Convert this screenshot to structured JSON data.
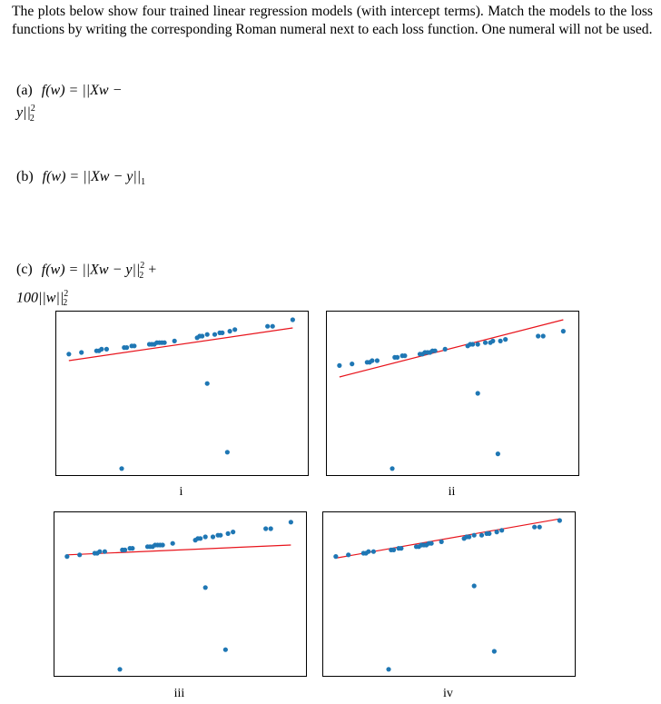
{
  "intro": "The plots below show four trained linear regression models (with intercept terms). Match the models to the loss functions by writing the corresponding Roman numeral next to each loss function. One numeral will not be used.",
  "questions": [
    {
      "label": "(a)",
      "formula_main": "f(w) = ||Xw − y||",
      "sup": "2",
      "sub": "2",
      "formula_tail": "",
      "sup2": "",
      "sub2": ""
    },
    {
      "label": "(b)",
      "formula_main": "f(w) = ||Xw − y||",
      "sup": "",
      "sub": "1",
      "formula_tail": "",
      "sup2": "",
      "sub2": ""
    },
    {
      "label": "(c)",
      "formula_main": "f(w) = ||Xw − y||",
      "sup": "2",
      "sub": "2",
      "formula_tail": " + 100||w||",
      "sup2": "2",
      "sub2": "2"
    }
  ],
  "colors": {
    "points": "#1f77b4",
    "line": "#e8141c"
  },
  "chart_data": [
    {
      "type": "scatter",
      "title": "",
      "xlabel": "i",
      "ylabel": "",
      "xlim": [
        0,
        1
      ],
      "ylim": [
        0,
        1
      ],
      "points_x": [
        0.05,
        0.1,
        0.16,
        0.17,
        0.18,
        0.2,
        0.27,
        0.28,
        0.3,
        0.31,
        0.37,
        0.38,
        0.39,
        0.4,
        0.41,
        0.42,
        0.43,
        0.47,
        0.56,
        0.57,
        0.58,
        0.6,
        0.63,
        0.65,
        0.66,
        0.69,
        0.71,
        0.84,
        0.86,
        0.94,
        0.26,
        0.6,
        0.68
      ],
      "points_y": [
        0.74,
        0.75,
        0.76,
        0.76,
        0.77,
        0.77,
        0.78,
        0.78,
        0.79,
        0.79,
        0.8,
        0.8,
        0.8,
        0.81,
        0.81,
        0.81,
        0.81,
        0.82,
        0.84,
        0.85,
        0.85,
        0.86,
        0.86,
        0.87,
        0.87,
        0.88,
        0.89,
        0.91,
        0.91,
        0.95,
        0.04,
        0.56,
        0.14
      ],
      "line": {
        "x": [
          0.05,
          0.94
        ],
        "y": [
          0.7,
          0.9
        ]
      }
    },
    {
      "type": "scatter",
      "title": "",
      "xlabel": "ii",
      "ylabel": "",
      "xlim": [
        0,
        1
      ],
      "ylim": [
        0,
        1
      ],
      "points_x": [
        0.05,
        0.1,
        0.16,
        0.17,
        0.18,
        0.2,
        0.27,
        0.28,
        0.3,
        0.31,
        0.37,
        0.38,
        0.39,
        0.4,
        0.41,
        0.42,
        0.43,
        0.47,
        0.56,
        0.57,
        0.58,
        0.6,
        0.63,
        0.65,
        0.66,
        0.69,
        0.71,
        0.84,
        0.86,
        0.94,
        0.26,
        0.6,
        0.68
      ],
      "points_y": [
        0.67,
        0.68,
        0.69,
        0.69,
        0.7,
        0.7,
        0.72,
        0.72,
        0.73,
        0.73,
        0.74,
        0.74,
        0.75,
        0.75,
        0.75,
        0.76,
        0.76,
        0.77,
        0.79,
        0.8,
        0.8,
        0.8,
        0.81,
        0.81,
        0.82,
        0.82,
        0.83,
        0.85,
        0.85,
        0.88,
        0.04,
        0.5,
        0.13
      ],
      "line": {
        "x": [
          0.05,
          0.94
        ],
        "y": [
          0.6,
          0.95
        ]
      }
    },
    {
      "type": "scatter",
      "title": "",
      "xlabel": "iii",
      "ylabel": "",
      "xlim": [
        0,
        1
      ],
      "ylim": [
        0,
        1
      ],
      "points_x": [
        0.05,
        0.1,
        0.16,
        0.17,
        0.18,
        0.2,
        0.27,
        0.28,
        0.3,
        0.31,
        0.37,
        0.38,
        0.39,
        0.4,
        0.41,
        0.42,
        0.43,
        0.47,
        0.56,
        0.57,
        0.58,
        0.6,
        0.63,
        0.65,
        0.66,
        0.69,
        0.71,
        0.84,
        0.86,
        0.94,
        0.26,
        0.6,
        0.68
      ],
      "points_y": [
        0.73,
        0.74,
        0.75,
        0.75,
        0.76,
        0.76,
        0.77,
        0.77,
        0.78,
        0.78,
        0.79,
        0.79,
        0.79,
        0.8,
        0.8,
        0.8,
        0.8,
        0.81,
        0.83,
        0.84,
        0.84,
        0.85,
        0.85,
        0.86,
        0.86,
        0.87,
        0.88,
        0.9,
        0.9,
        0.94,
        0.04,
        0.54,
        0.16
      ],
      "line": {
        "x": [
          0.05,
          0.94
        ],
        "y": [
          0.74,
          0.8
        ]
      }
    },
    {
      "type": "scatter",
      "title": "",
      "xlabel": "iv",
      "ylabel": "",
      "xlim": [
        0,
        1
      ],
      "ylim": [
        0,
        1
      ],
      "points_x": [
        0.05,
        0.1,
        0.16,
        0.17,
        0.18,
        0.2,
        0.27,
        0.28,
        0.3,
        0.31,
        0.37,
        0.38,
        0.39,
        0.4,
        0.41,
        0.42,
        0.43,
        0.47,
        0.56,
        0.57,
        0.58,
        0.6,
        0.63,
        0.65,
        0.66,
        0.69,
        0.71,
        0.84,
        0.86,
        0.94,
        0.26,
        0.6,
        0.68
      ],
      "points_y": [
        0.73,
        0.74,
        0.75,
        0.75,
        0.76,
        0.76,
        0.77,
        0.77,
        0.78,
        0.78,
        0.79,
        0.79,
        0.8,
        0.8,
        0.8,
        0.81,
        0.81,
        0.82,
        0.84,
        0.85,
        0.85,
        0.86,
        0.86,
        0.87,
        0.87,
        0.88,
        0.89,
        0.91,
        0.91,
        0.95,
        0.04,
        0.55,
        0.15
      ],
      "line": {
        "x": [
          0.05,
          0.94
        ],
        "y": [
          0.72,
          0.96
        ]
      }
    }
  ]
}
